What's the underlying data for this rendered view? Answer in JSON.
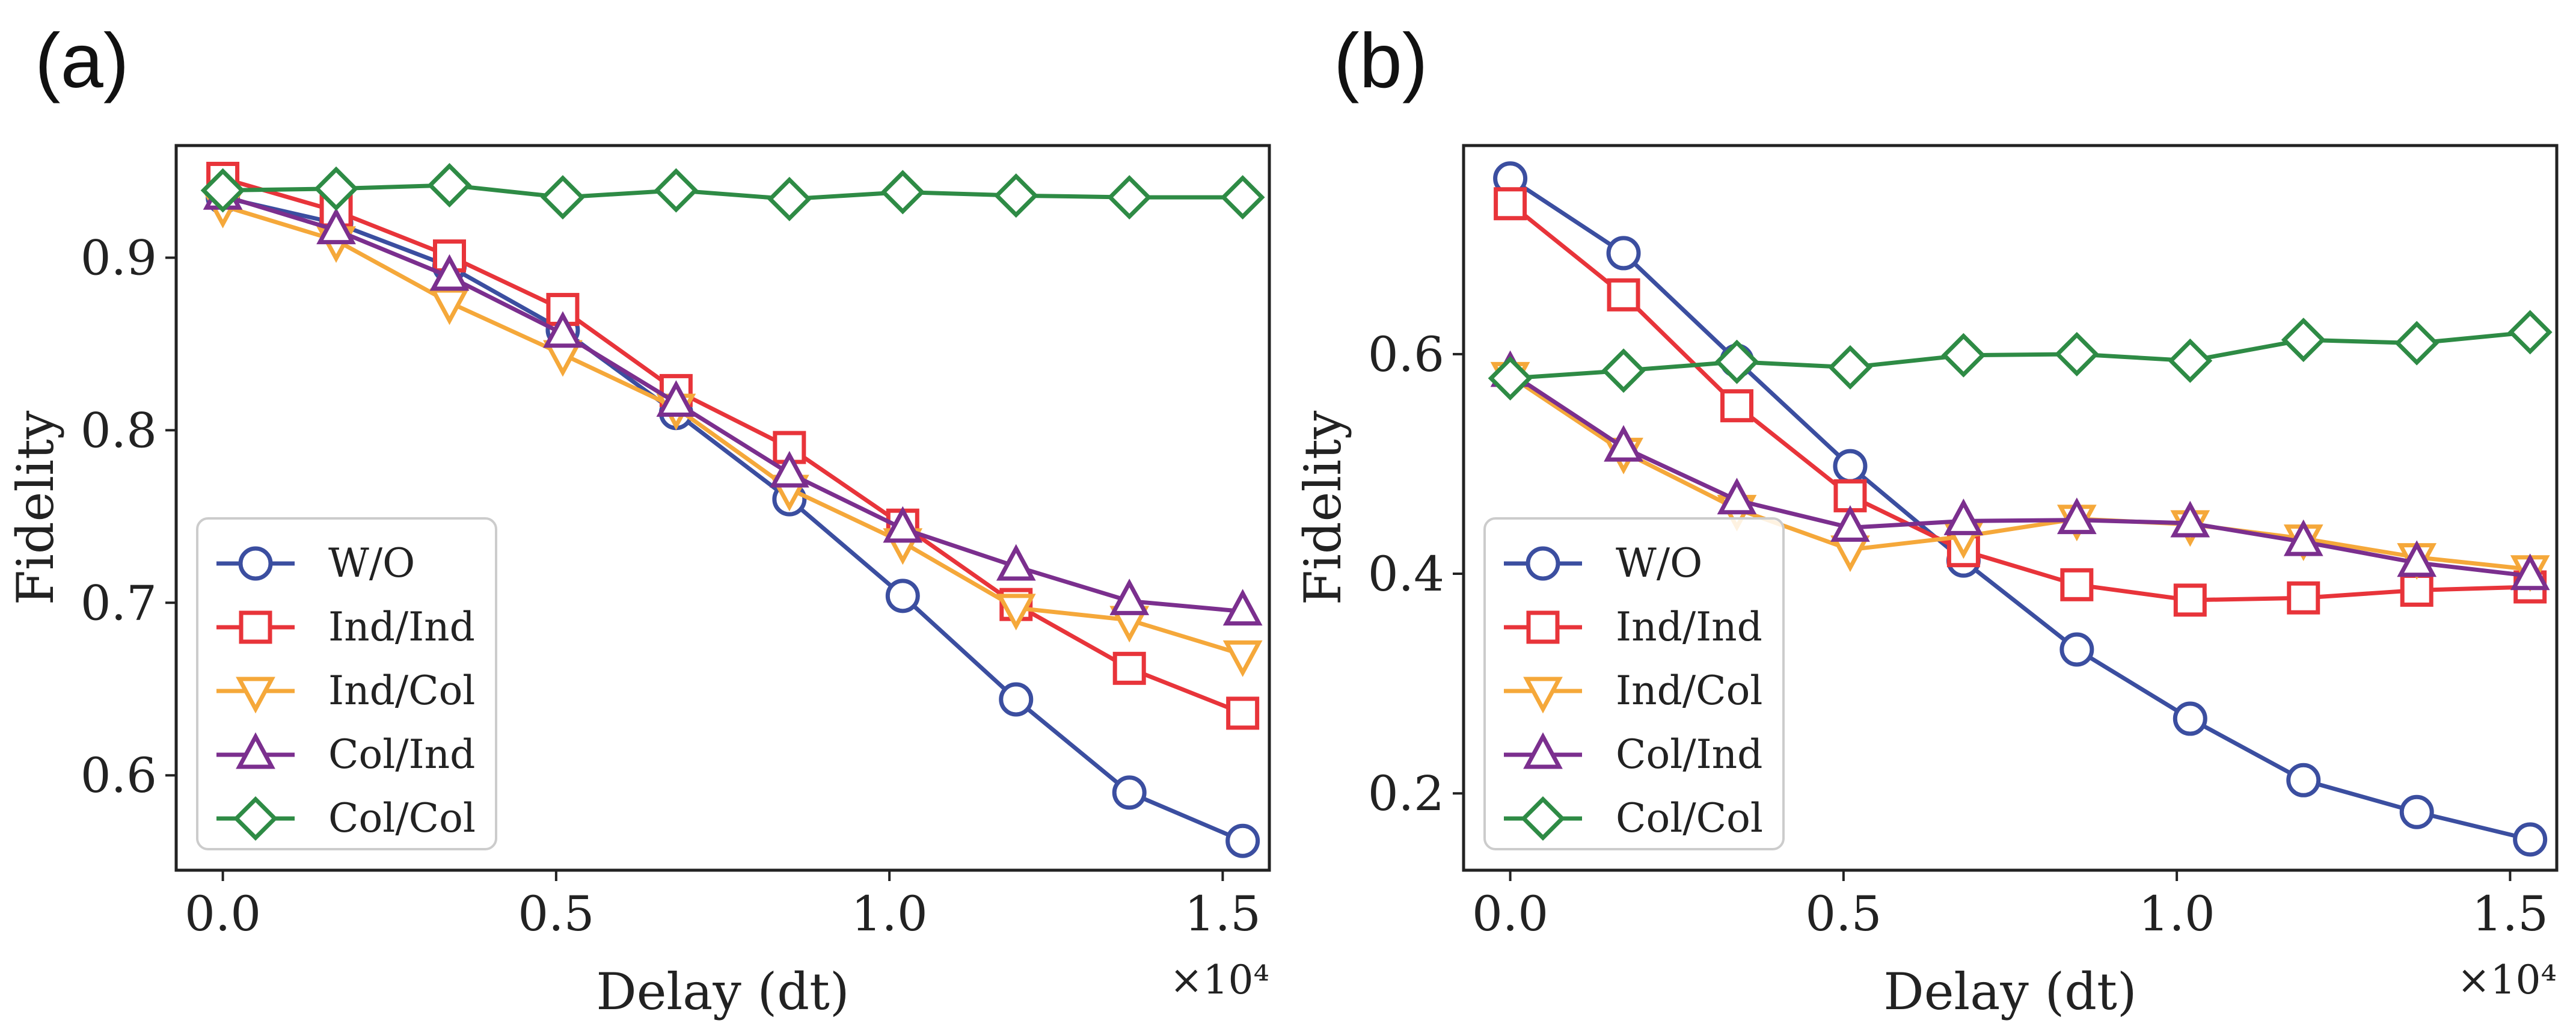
{
  "chart_data": [
    {
      "type": "line",
      "panel_label": "(a)",
      "xlabel": "Delay (dt)",
      "ylabel": "Fidelity",
      "x_multiplier": "×10⁴",
      "xlim": [
        -0.07,
        1.57
      ],
      "ylim": [
        0.545,
        0.965
      ],
      "xticks": [
        0.0,
        0.5,
        1.0,
        1.5
      ],
      "xtick_labels": [
        "0.0",
        "0.5",
        "1.0",
        "1.5"
      ],
      "yticks": [
        0.6,
        0.7,
        0.8,
        0.9
      ],
      "ytick_labels": [
        "0.6",
        "0.7",
        "0.8",
        "0.9"
      ],
      "legend_position": "lower-left",
      "x": [
        0.0,
        0.17,
        0.34,
        0.51,
        0.68,
        0.85,
        1.02,
        1.19,
        1.36,
        1.53
      ],
      "series": [
        {
          "name": "W/O",
          "marker": "circle",
          "color": "#3b4ea0",
          "values": [
            0.935,
            0.92,
            0.895,
            0.858,
            0.81,
            0.76,
            0.704,
            0.644,
            0.59,
            0.562
          ]
        },
        {
          "name": "Ind/Ind",
          "marker": "square",
          "color": "#e8343a",
          "values": [
            0.946,
            0.927,
            0.901,
            0.87,
            0.823,
            0.79,
            0.745,
            0.699,
            0.662,
            0.636
          ]
        },
        {
          "name": "Ind/Col",
          "marker": "triangle-down",
          "color": "#f5a83a",
          "values": [
            0.93,
            0.91,
            0.874,
            0.844,
            0.813,
            0.766,
            0.735,
            0.697,
            0.69,
            0.67
          ]
        },
        {
          "name": "Col/Ind",
          "marker": "triangle-up",
          "color": "#7b2f8e",
          "values": [
            0.936,
            0.916,
            0.889,
            0.856,
            0.816,
            0.775,
            0.743,
            0.721,
            0.701,
            0.695
          ]
        },
        {
          "name": "Col/Col",
          "marker": "diamond",
          "color": "#2e8b45",
          "values": [
            0.939,
            0.94,
            0.942,
            0.935,
            0.939,
            0.934,
            0.938,
            0.936,
            0.935,
            0.935
          ]
        }
      ]
    },
    {
      "type": "line",
      "panel_label": "(b)",
      "xlabel": "Delay (dt)",
      "ylabel": "Fidelity",
      "x_multiplier": "×10⁴",
      "xlim": [
        -0.07,
        1.57
      ],
      "ylim": [
        0.13,
        0.79
      ],
      "xticks": [
        0.0,
        0.5,
        1.0,
        1.5
      ],
      "xtick_labels": [
        "0.0",
        "0.5",
        "1.0",
        "1.5"
      ],
      "yticks": [
        0.2,
        0.4,
        0.6
      ],
      "ytick_labels": [
        "0.2",
        "0.4",
        "0.6"
      ],
      "legend_position": "lower-left",
      "x": [
        0.0,
        0.17,
        0.34,
        0.51,
        0.68,
        0.85,
        1.02,
        1.19,
        1.36,
        1.53
      ],
      "series": [
        {
          "name": "W/O",
          "marker": "circle",
          "color": "#3b4ea0",
          "values": [
            0.76,
            0.692,
            0.594,
            0.498,
            0.412,
            0.331,
            0.268,
            0.212,
            0.183,
            0.158
          ]
        },
        {
          "name": "Ind/Ind",
          "marker": "square",
          "color": "#e8343a",
          "values": [
            0.737,
            0.654,
            0.553,
            0.471,
            0.421,
            0.39,
            0.376,
            0.378,
            0.385,
            0.388
          ]
        },
        {
          "name": "Ind/Col",
          "marker": "triangle-down",
          "color": "#f5a83a",
          "values": [
            0.58,
            0.511,
            0.459,
            0.422,
            0.434,
            0.45,
            0.445,
            0.432,
            0.415,
            0.404
          ]
        },
        {
          "name": "Col/Ind",
          "marker": "triangle-up",
          "color": "#7b2f8e",
          "values": [
            0.583,
            0.515,
            0.467,
            0.442,
            0.448,
            0.449,
            0.446,
            0.429,
            0.41,
            0.398
          ]
        },
        {
          "name": "Col/Col",
          "marker": "diamond",
          "color": "#2e8b45",
          "values": [
            0.578,
            0.585,
            0.593,
            0.588,
            0.599,
            0.6,
            0.594,
            0.613,
            0.61,
            0.62
          ]
        }
      ]
    }
  ]
}
